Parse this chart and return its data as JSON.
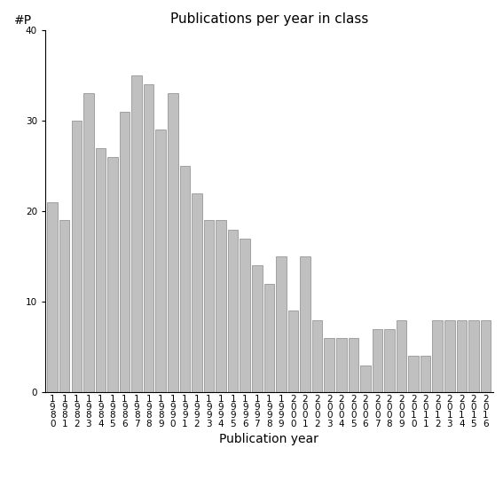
{
  "title": "Publications per year in class",
  "xlabel": "Publication year",
  "ylabel": "#P",
  "categories": [
    "1980",
    "1981",
    "1982",
    "1983",
    "1984",
    "1985",
    "1986",
    "1987",
    "1988",
    "1989",
    "1990",
    "1991",
    "1992",
    "1993",
    "1994",
    "1995",
    "1996",
    "1997",
    "1998",
    "1999",
    "2000",
    "2001",
    "2002",
    "2003",
    "2004",
    "2005",
    "2006",
    "2007",
    "2008",
    "2009",
    "2010",
    "2011",
    "2012",
    "2013",
    "2014",
    "2015",
    "2016"
  ],
  "values": [
    21,
    19,
    30,
    33,
    27,
    26,
    31,
    35,
    34,
    29,
    33,
    25,
    22,
    19,
    19,
    18,
    17,
    14,
    12,
    15,
    9,
    15,
    8,
    6,
    6,
    6,
    3,
    7,
    7,
    8,
    4,
    4,
    8,
    8,
    8,
    8,
    8
  ],
  "bar_color": "#c0c0c0",
  "bar_edgecolor": "#888888",
  "ylim": [
    0,
    40
  ],
  "yticks": [
    0,
    10,
    20,
    30,
    40
  ],
  "background_color": "#ffffff",
  "title_fontsize": 11,
  "label_fontsize": 10,
  "tick_fontsize": 7.5
}
